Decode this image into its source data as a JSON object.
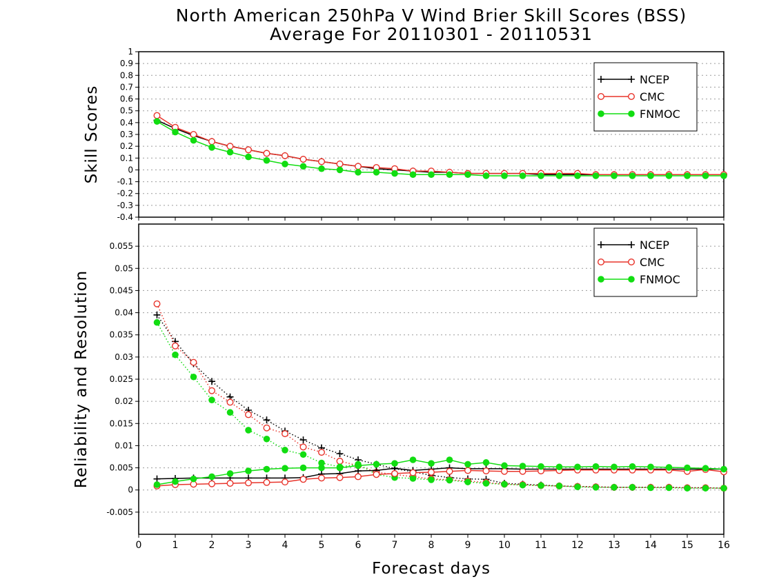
{
  "title": "North American 250hPa V Wind Brier Skill Scores (BSS)",
  "subtitle": "Average For 20110301 - 20110531",
  "chart_data": [
    {
      "type": "line",
      "ylabel": "Skill Scores",
      "xlabel": "Forecast days",
      "xlim": [
        0,
        16
      ],
      "ylim": [
        -0.4,
        1
      ],
      "x_ticks": [
        0,
        1,
        2,
        3,
        4,
        5,
        6,
        7,
        8,
        9,
        10,
        11,
        12,
        13,
        14,
        15,
        16
      ],
      "y_ticks": [
        -0.4,
        -0.3,
        -0.2,
        -0.1,
        0,
        0.1,
        0.2,
        0.3,
        0.4,
        0.5,
        0.6,
        0.7,
        0.8,
        0.9,
        1
      ],
      "grid": "dotted horizontal",
      "legend_position": "top-right",
      "x": [
        0.5,
        1,
        1.5,
        2,
        2.5,
        3,
        3.5,
        4,
        4.5,
        5,
        5.5,
        6,
        6.5,
        7,
        7.5,
        8,
        8.5,
        9,
        9.5,
        10,
        10.5,
        11,
        11.5,
        12,
        12.5,
        13,
        13.5,
        14,
        14.5,
        15,
        15.5,
        16
      ],
      "series": [
        {
          "name": "NCEP",
          "color": "#000000",
          "marker": "plus",
          "line": "solid",
          "values": [
            0.42,
            0.35,
            0.29,
            0.24,
            0.2,
            0.17,
            0.14,
            0.12,
            0.09,
            0.07,
            0.05,
            0.03,
            0.01,
            0.0,
            -0.01,
            -0.02,
            -0.02,
            -0.03,
            -0.03,
            -0.03,
            -0.03,
            -0.04,
            -0.04,
            -0.04,
            -0.04,
            -0.04,
            -0.04,
            -0.04,
            -0.04,
            -0.04,
            -0.04,
            -0.04
          ]
        },
        {
          "name": "CMC",
          "color": "#e8332a",
          "marker": "open-circle",
          "line": "solid",
          "values": [
            0.46,
            0.36,
            0.3,
            0.24,
            0.2,
            0.17,
            0.14,
            0.12,
            0.09,
            0.07,
            0.05,
            0.03,
            0.02,
            0.01,
            -0.01,
            -0.01,
            -0.02,
            -0.03,
            -0.03,
            -0.03,
            -0.03,
            -0.03,
            -0.03,
            -0.03,
            -0.04,
            -0.04,
            -0.04,
            -0.04,
            -0.04,
            -0.04,
            -0.04,
            -0.04
          ]
        },
        {
          "name": "FNMOC",
          "color": "#11dd11",
          "marker": "filled-circle",
          "line": "solid",
          "values": [
            0.41,
            0.32,
            0.25,
            0.19,
            0.15,
            0.11,
            0.08,
            0.05,
            0.03,
            0.01,
            0.0,
            -0.02,
            -0.02,
            -0.03,
            -0.04,
            -0.04,
            -0.04,
            -0.04,
            -0.05,
            -0.05,
            -0.05,
            -0.05,
            -0.05,
            -0.05,
            -0.05,
            -0.05,
            -0.05,
            -0.05,
            -0.05,
            -0.05,
            -0.05,
            -0.05
          ]
        }
      ]
    },
    {
      "type": "line",
      "ylabel": "Reliability and Resolution",
      "xlabel": "Forecast days",
      "xlim": [
        0,
        16
      ],
      "ylim": [
        -0.01,
        0.06
      ],
      "x_ticks": [
        0,
        1,
        2,
        3,
        4,
        5,
        6,
        7,
        8,
        9,
        10,
        11,
        12,
        13,
        14,
        15,
        16
      ],
      "y_ticks": [
        -0.005,
        0,
        0.005,
        0.01,
        0.015,
        0.02,
        0.025,
        0.03,
        0.035,
        0.04,
        0.045,
        0.05,
        0.055
      ],
      "grid": "dotted horizontal",
      "legend_position": "top-right",
      "x": [
        0.5,
        1,
        1.5,
        2,
        2.5,
        3,
        3.5,
        4,
        4.5,
        5,
        5.5,
        6,
        6.5,
        7,
        7.5,
        8,
        8.5,
        9,
        9.5,
        10,
        10.5,
        11,
        11.5,
        12,
        12.5,
        13,
        13.5,
        14,
        14.5,
        15,
        15.5,
        16
      ],
      "series": [
        {
          "name": "NCEP",
          "color": "#000000",
          "marker": "plus",
          "line": "dotted",
          "measure": "reliability",
          "values": [
            0.0395,
            0.0335,
            0.0285,
            0.0245,
            0.021,
            0.018,
            0.0158,
            0.0133,
            0.0113,
            0.0095,
            0.0082,
            0.0068,
            0.0058,
            0.0048,
            0.0041,
            0.0033,
            0.0028,
            0.0025,
            0.0024,
            0.0015,
            0.0013,
            0.0011,
            0.0009,
            0.0008,
            0.0007,
            0.0006,
            0.0006,
            0.0006,
            0.0006,
            0.0005,
            0.0005,
            0.0004
          ]
        },
        {
          "name": "CMC",
          "color": "#e8332a",
          "marker": "open-circle",
          "line": "dotted",
          "measure": "reliability",
          "values": [
            0.042,
            0.0325,
            0.0288,
            0.0224,
            0.0198,
            0.017,
            0.014,
            0.0127,
            0.0097,
            0.0085,
            0.0065,
            0.0055,
            0.004,
            0.0035,
            0.003,
            0.0025,
            0.0023,
            0.002,
            0.0017,
            0.0013,
            0.0012,
            0.001,
            0.0009,
            0.0008,
            0.0007,
            0.0006,
            0.0006,
            0.0006,
            0.0006,
            0.0005,
            0.0005,
            0.0004
          ]
        },
        {
          "name": "FNMOC",
          "color": "#11dd11",
          "marker": "filled-circle",
          "line": "dotted",
          "measure": "reliability",
          "values": [
            0.0378,
            0.0305,
            0.0255,
            0.0203,
            0.0175,
            0.0135,
            0.0115,
            0.009,
            0.008,
            0.0061,
            0.0052,
            0.0058,
            0.0035,
            0.0028,
            0.0026,
            0.0023,
            0.0022,
            0.0018,
            0.0015,
            0.0013,
            0.0011,
            0.001,
            0.0009,
            0.0007,
            0.0006,
            0.0006,
            0.0006,
            0.0005,
            0.0005,
            0.0004,
            0.0004,
            0.0004
          ]
        },
        {
          "name": "NCEP",
          "color": "#000000",
          "marker": "plus",
          "line": "solid",
          "measure": "resolution",
          "values": [
            0.0025,
            0.0026,
            0.0027,
            0.0027,
            0.0027,
            0.0027,
            0.0027,
            0.0027,
            0.0028,
            0.0036,
            0.0037,
            0.0043,
            0.0044,
            0.0049,
            0.0044,
            0.0047,
            0.005,
            0.0048,
            0.0048,
            0.0048,
            0.0047,
            0.0047,
            0.0047,
            0.0047,
            0.0047,
            0.0047,
            0.0047,
            0.0047,
            0.0047,
            0.0047,
            0.0047,
            0.0047
          ]
        },
        {
          "name": "CMC",
          "color": "#e8332a",
          "marker": "open-circle",
          "line": "solid",
          "measure": "resolution",
          "values": [
            0.0009,
            0.0012,
            0.0013,
            0.0014,
            0.0015,
            0.0016,
            0.0017,
            0.0018,
            0.0024,
            0.0027,
            0.0028,
            0.003,
            0.0035,
            0.0037,
            0.0039,
            0.004,
            0.0042,
            0.0044,
            0.0043,
            0.0042,
            0.0042,
            0.0043,
            0.0044,
            0.0045,
            0.0045,
            0.0045,
            0.0045,
            0.0045,
            0.0045,
            0.0042,
            0.0046,
            0.0041
          ]
        },
        {
          "name": "FNMOC",
          "color": "#11dd11",
          "marker": "filled-circle",
          "line": "solid",
          "measure": "resolution",
          "values": [
            0.0012,
            0.0019,
            0.0025,
            0.003,
            0.0037,
            0.0043,
            0.0047,
            0.0049,
            0.005,
            0.005,
            0.005,
            0.0055,
            0.0058,
            0.006,
            0.0068,
            0.006,
            0.0068,
            0.0058,
            0.0062,
            0.0055,
            0.0054,
            0.0053,
            0.0052,
            0.0052,
            0.0053,
            0.0052,
            0.0053,
            0.0052,
            0.0051,
            0.005,
            0.0049,
            0.0047
          ]
        }
      ]
    }
  ]
}
